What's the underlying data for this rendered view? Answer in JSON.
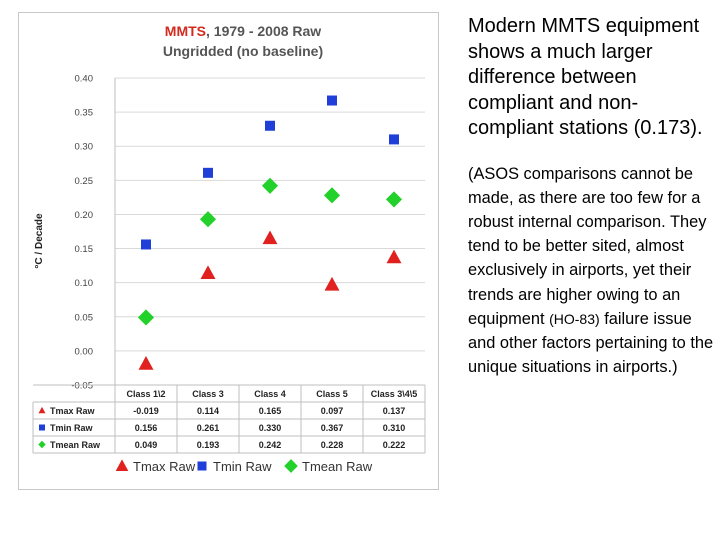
{
  "chart_data": {
    "type": "scatter",
    "title_part1": "MMTS",
    "title_part2": ", 1979 - 2008 Raw",
    "subtitle": "Ungridded (no baseline)",
    "ylabel": "°C / Decade",
    "ylim": [
      -0.05,
      0.4
    ],
    "yticks": [
      "0.40",
      "0.35",
      "0.30",
      "0.25",
      "0.20",
      "0.15",
      "0.10",
      "0.05",
      "0.00",
      "-0.05"
    ],
    "categories": [
      "Class 1\\2",
      "Class 3",
      "Class 4",
      "Class 5",
      "Class 3\\4\\5"
    ],
    "series": [
      {
        "name": "Tmax Raw",
        "marker": "triangle",
        "color": "#e0211f",
        "values": [
          -0.019,
          0.114,
          0.165,
          0.097,
          0.137
        ],
        "labels": [
          "-0.019",
          "0.114",
          "0.165",
          "0.097",
          "0.137"
        ]
      },
      {
        "name": "Tmin Raw",
        "marker": "square",
        "color": "#1f3fd8",
        "values": [
          0.156,
          0.261,
          0.33,
          0.367,
          0.31
        ],
        "labels": [
          "0.156",
          "0.261",
          "0.330",
          "0.367",
          "0.310"
        ]
      },
      {
        "name": "Tmean Raw",
        "marker": "diamond",
        "color": "#22d12a",
        "values": [
          0.049,
          0.193,
          0.242,
          0.228,
          0.222
        ],
        "labels": [
          "0.049",
          "0.193",
          "0.242",
          "0.228",
          "0.222"
        ]
      }
    ],
    "legend_position": "bottom"
  },
  "side_text": {
    "main": "Modern MMTS equipment shows a much larger difference between compliant and non-compliant stations (0.173).",
    "note_before": "(ASOS comparisons cannot be made, as there are too few for a robust internal comparison. They tend to be better sited, almost exclusively in airports, yet their trends are higher owing to an equipment ",
    "note_ho": "(HO-83)",
    "note_after": " failure issue and other factors pertaining to the unique situations in airports.)"
  }
}
